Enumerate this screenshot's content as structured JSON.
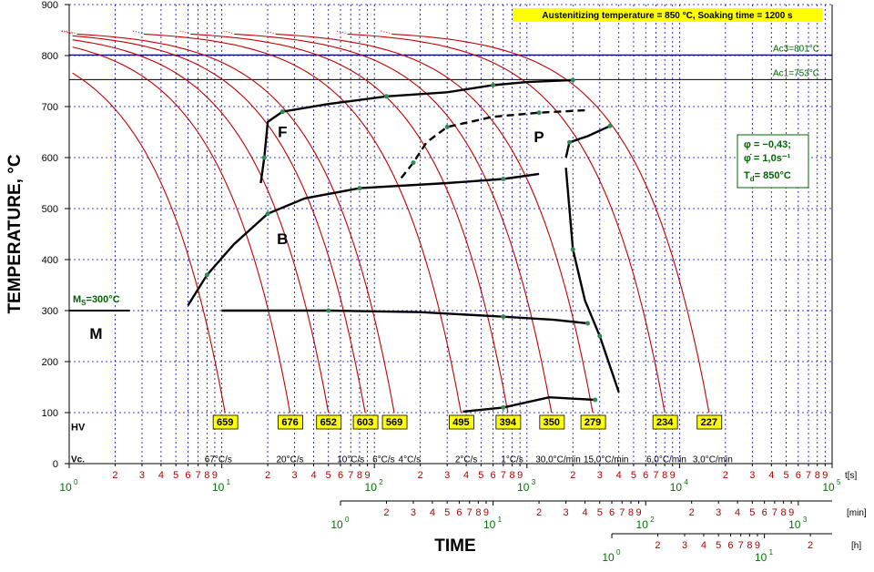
{
  "chart_data": {
    "type": "line",
    "title": "Austenitizing temperature  = 850 °C, Soaking time = 1200 s",
    "ylabel": "TEMPERATURE, °C",
    "xlabel": "TIME",
    "yticks": [
      "0",
      "100",
      "200",
      "300",
      "400",
      "500",
      "600",
      "700",
      "800",
      "900"
    ],
    "ylim": [
      0,
      900
    ],
    "x_scale": "log",
    "time_axes": [
      {
        "unit": "t[s]",
        "major": [
          "10",
          "10",
          "10",
          "10",
          "10",
          "10"
        ],
        "exp": [
          "0",
          "1",
          "2",
          "3",
          "4",
          "5"
        ]
      },
      {
        "unit": "[min]",
        "major": [
          "10",
          "10",
          "10",
          "10"
        ],
        "exp": [
          "0",
          "1",
          "2",
          "3"
        ]
      },
      {
        "unit": "[h]",
        "major": [
          "10",
          "10"
        ],
        "exp": [
          "0",
          "1"
        ]
      }
    ],
    "minor_labels": [
      "2",
      "3",
      "4",
      "5",
      "6",
      "7",
      "8",
      "9"
    ],
    "reference_lines": [
      {
        "label": "Ac3=801°C",
        "y": 801
      },
      {
        "label": "Ac1=753°C",
        "y": 753
      }
    ],
    "ms_label": "Ms=300°C",
    "ms_main": "M",
    "ms_sub": "S",
    "ms_value": "=300°C",
    "ms_y": 300,
    "regions": [
      {
        "label": "F",
        "x": 25,
        "y": 640
      },
      {
        "label": "P",
        "x": 1200,
        "y": 630
      },
      {
        "label": "B",
        "x": 25,
        "y": 430
      },
      {
        "label": "M",
        "x": 1.5,
        "y": 245
      }
    ],
    "params": [
      "φ = −0,43;",
      "φ̇ = 1,0s⁻¹",
      "Td= 850°C"
    ],
    "params_td_main": "T",
    "params_td_sub": "d",
    "params_td_rest": "= 850°C",
    "hv_label": "HV",
    "hardness": [
      {
        "value": "659",
        "t": 10.5
      },
      {
        "value": "676",
        "t": 28
      },
      {
        "value": "652",
        "t": 50
      },
      {
        "value": "603",
        "t": 87
      },
      {
        "value": "569",
        "t": 135
      },
      {
        "value": "495",
        "t": 370
      },
      {
        "value": "394",
        "t": 750
      },
      {
        "value": "350",
        "t": 1450
      },
      {
        "value": "279",
        "t": 2700
      },
      {
        "value": "234",
        "t": 8000
      },
      {
        "value": "227",
        "t": 15600
      }
    ],
    "vc_label": "Vc.",
    "cooling_rates": [
      {
        "label": "67°C/s",
        "t": 9.5
      },
      {
        "label": "20°C/s",
        "t": 28
      },
      {
        "label": "10°C/s",
        "t": 70
      },
      {
        "label": "6°C/s",
        "t": 115
      },
      {
        "label": "4°C/s",
        "t": 170
      },
      {
        "label": "2°C/s",
        "t": 400
      },
      {
        "label": "1°C/s",
        "t": 800
      },
      {
        "label": "30,0°C/min",
        "t": 1600
      },
      {
        "label": "15,0°C/min",
        "t": 3300
      },
      {
        "label": "6,0°C/min",
        "t": 8200
      },
      {
        "label": "3,0°C/min",
        "t": 16500
      }
    ],
    "cooling_curves_t_at_100C": [
      10.5,
      28,
      50,
      87,
      135,
      370,
      750,
      1450,
      2700,
      8000,
      15600
    ],
    "transformation_lines": [
      {
        "name": "ferrite-start",
        "style": "solid",
        "points": [
          [
            18,
            550
          ],
          [
            19,
            600
          ],
          [
            20,
            670
          ],
          [
            25,
            690
          ],
          [
            50,
            705
          ],
          [
            120,
            720
          ],
          [
            300,
            728
          ],
          [
            600,
            742
          ],
          [
            1000,
            748
          ],
          [
            2000,
            752
          ]
        ]
      },
      {
        "name": "pearlite-start",
        "style": "dashed",
        "points": [
          [
            150,
            560
          ],
          [
            180,
            590
          ],
          [
            220,
            630
          ],
          [
            300,
            660
          ],
          [
            600,
            680
          ],
          [
            1200,
            688
          ],
          [
            2500,
            693
          ]
        ]
      },
      {
        "name": "pearlite-start-2",
        "style": "solid",
        "points": [
          [
            1800,
            600
          ],
          [
            1900,
            630
          ],
          [
            2500,
            642
          ],
          [
            3500,
            662
          ]
        ]
      },
      {
        "name": "bainite-start",
        "style": "mixed",
        "points": [
          [
            6,
            310
          ],
          [
            8,
            370
          ],
          [
            12,
            430
          ],
          [
            20,
            490
          ],
          [
            35,
            520
          ],
          [
            80,
            540
          ],
          [
            300,
            550
          ],
          [
            700,
            558
          ],
          [
            1200,
            568
          ]
        ]
      },
      {
        "name": "pearlite-finish",
        "style": "solid",
        "points": [
          [
            1800,
            580
          ],
          [
            2000,
            420
          ],
          [
            2400,
            320
          ],
          [
            3000,
            250
          ],
          [
            4000,
            140
          ]
        ]
      },
      {
        "name": "bainite-finish",
        "style": "solid",
        "points": [
          [
            10,
            300
          ],
          [
            50,
            300
          ],
          [
            200,
            297
          ],
          [
            700,
            288
          ],
          [
            1500,
            282
          ],
          [
            2500,
            275
          ]
        ]
      },
      {
        "name": "martensite-finish-low",
        "style": "solid",
        "points": [
          [
            380,
            102
          ],
          [
            700,
            110
          ],
          [
            1400,
            130
          ],
          [
            2800,
            125
          ]
        ]
      }
    ],
    "grid": true
  }
}
